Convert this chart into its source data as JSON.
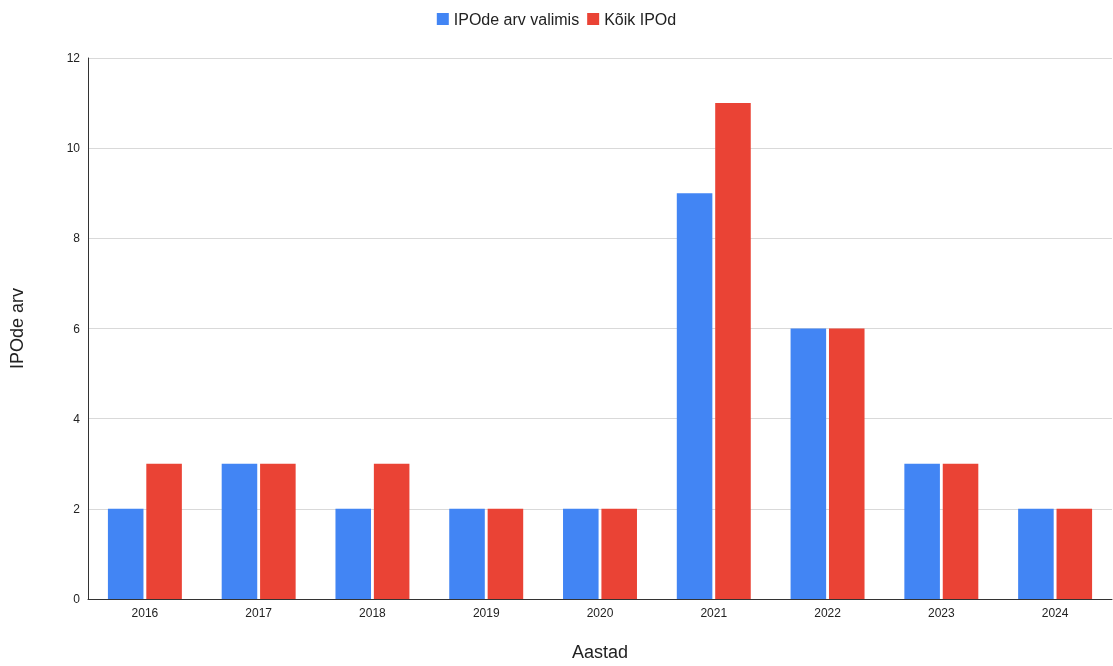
{
  "chart_data": {
    "type": "bar",
    "xlabel": "Aastad",
    "ylabel": "IPOde arv",
    "categories": [
      "2016",
      "2017",
      "2018",
      "2019",
      "2020",
      "2021",
      "2022",
      "2023",
      "2024"
    ],
    "series": [
      {
        "name": "IPOde arv valimis",
        "color": "#4285f4",
        "values": [
          2,
          3,
          2,
          2,
          2,
          9,
          6,
          3,
          2
        ]
      },
      {
        "name": "Kõik IPOd",
        "color": "#ea4335",
        "values": [
          3,
          3,
          3,
          2,
          2,
          11,
          6,
          3,
          2
        ]
      }
    ],
    "ylim": [
      0,
      12
    ],
    "yticks": [
      0,
      2,
      4,
      6,
      8,
      10,
      12
    ],
    "grid": "y",
    "legend": "top"
  }
}
